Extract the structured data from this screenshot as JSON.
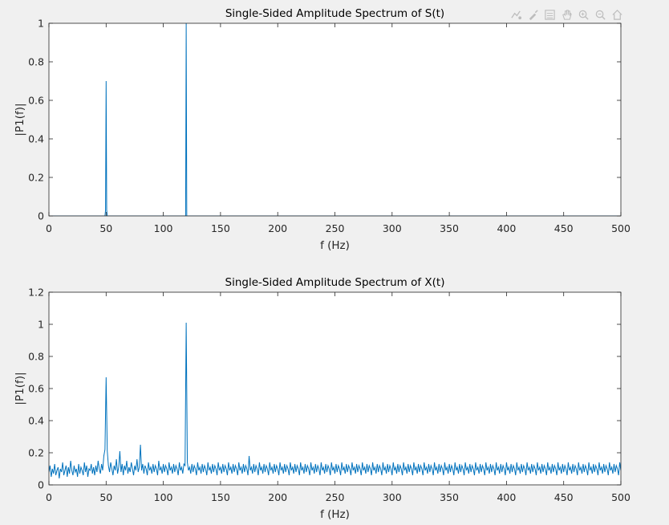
{
  "figure": {
    "background": "#f0f0f0",
    "axes_background": "#ffffff",
    "line_color": "#0072bd"
  },
  "toolbar": {
    "icons": [
      "data-tips-icon",
      "brush-icon",
      "legend-icon",
      "pan-icon",
      "zoom-in-icon",
      "zoom-out-icon",
      "home-icon"
    ]
  },
  "chart_data": [
    {
      "type": "line",
      "title": "Single-Sided Amplitude Spectrum of S(t)",
      "xlabel": "f (Hz)",
      "ylabel": "|P1(f)|",
      "xlim": [
        0,
        500
      ],
      "ylim": [
        0,
        1
      ],
      "xticks": [
        0,
        50,
        100,
        150,
        200,
        250,
        300,
        350,
        400,
        450,
        500
      ],
      "yticks": [
        0,
        0.2,
        0.4,
        0.6,
        0.8,
        1
      ],
      "xtick_labels": [
        "0",
        "50",
        "100",
        "150",
        "200",
        "250",
        "300",
        "350",
        "400",
        "450",
        "500"
      ],
      "ytick_labels": [
        "0",
        "0.2",
        "0.4",
        "0.6",
        "0.8",
        "1"
      ],
      "grid": false,
      "series": [
        {
          "x": [
            0,
            49,
            49.5,
            50,
            50.5,
            51,
            119,
            119.5,
            120,
            120.5,
            121,
            500
          ],
          "y": [
            0,
            0,
            0.03,
            0.7,
            0.03,
            0,
            0,
            0.0,
            1.0,
            0.0,
            0,
            0
          ]
        }
      ]
    },
    {
      "type": "line",
      "title": "Single-Sided Amplitude Spectrum of X(t)",
      "xlabel": "f (Hz)",
      "ylabel": "|P1(f)|",
      "xlim": [
        0,
        500
      ],
      "ylim": [
        0,
        1.2
      ],
      "xticks": [
        0,
        50,
        100,
        150,
        200,
        250,
        300,
        350,
        400,
        450,
        500
      ],
      "yticks": [
        0,
        0.2,
        0.4,
        0.6,
        0.8,
        1,
        1.2
      ],
      "xtick_labels": [
        "0",
        "50",
        "100",
        "150",
        "200",
        "250",
        "300",
        "350",
        "400",
        "450",
        "500"
      ],
      "ytick_labels": [
        "0",
        "0.2",
        "0.4",
        "0.6",
        "0.8",
        "1",
        "1.2"
      ],
      "grid": false,
      "series": [
        {
          "x_start": 0,
          "x_step": 1,
          "y": [
            0.08,
            0.12,
            0.05,
            0.1,
            0.07,
            0.13,
            0.06,
            0.09,
            0.11,
            0.04,
            0.1,
            0.08,
            0.14,
            0.06,
            0.09,
            0.12,
            0.05,
            0.11,
            0.07,
            0.15,
            0.09,
            0.06,
            0.12,
            0.08,
            0.1,
            0.05,
            0.13,
            0.07,
            0.11,
            0.09,
            0.06,
            0.14,
            0.08,
            0.12,
            0.05,
            0.1,
            0.09,
            0.13,
            0.07,
            0.11,
            0.06,
            0.12,
            0.08,
            0.15,
            0.1,
            0.07,
            0.13,
            0.09,
            0.18,
            0.22,
            0.67,
            0.21,
            0.12,
            0.08,
            0.14,
            0.1,
            0.06,
            0.12,
            0.09,
            0.16,
            0.07,
            0.11,
            0.21,
            0.08,
            0.13,
            0.06,
            0.12,
            0.09,
            0.15,
            0.07,
            0.11,
            0.08,
            0.14,
            0.1,
            0.06,
            0.12,
            0.09,
            0.16,
            0.08,
            0.11,
            0.25,
            0.09,
            0.13,
            0.07,
            0.12,
            0.1,
            0.06,
            0.14,
            0.09,
            0.11,
            0.07,
            0.13,
            0.08,
            0.12,
            0.1,
            0.06,
            0.15,
            0.09,
            0.11,
            0.07,
            0.13,
            0.08,
            0.12,
            0.1,
            0.06,
            0.14,
            0.09,
            0.11,
            0.07,
            0.13,
            0.08,
            0.12,
            0.1,
            0.06,
            0.14,
            0.09,
            0.11,
            0.07,
            0.13,
            0.12,
            1.01,
            0.14,
            0.09,
            0.11,
            0.07,
            0.13,
            0.08,
            0.12,
            0.1,
            0.06,
            0.14,
            0.09,
            0.11,
            0.07,
            0.13,
            0.08,
            0.12,
            0.1,
            0.06,
            0.14,
            0.09,
            0.11,
            0.07,
            0.13,
            0.08,
            0.12,
            0.1,
            0.06,
            0.14,
            0.09,
            0.11,
            0.07,
            0.13,
            0.08,
            0.12,
            0.1,
            0.06,
            0.14,
            0.09,
            0.11,
            0.07,
            0.13,
            0.08,
            0.12,
            0.1,
            0.06,
            0.14,
            0.09,
            0.11,
            0.07,
            0.13,
            0.08,
            0.12,
            0.1,
            0.06,
            0.18,
            0.09,
            0.11,
            0.07,
            0.13,
            0.08,
            0.12,
            0.1,
            0.06,
            0.14,
            0.09,
            0.11,
            0.07,
            0.13,
            0.08,
            0.12,
            0.1,
            0.06,
            0.14,
            0.09,
            0.11,
            0.07,
            0.13,
            0.08,
            0.12,
            0.1,
            0.06,
            0.14,
            0.09,
            0.11,
            0.07,
            0.13,
            0.08,
            0.12,
            0.1,
            0.06,
            0.14,
            0.09,
            0.11,
            0.07,
            0.13,
            0.08,
            0.12,
            0.1,
            0.06,
            0.14,
            0.09,
            0.11,
            0.07,
            0.13,
            0.08,
            0.12,
            0.1,
            0.06,
            0.14,
            0.09,
            0.11,
            0.07,
            0.13,
            0.08,
            0.12,
            0.1,
            0.06,
            0.14,
            0.09,
            0.11,
            0.07,
            0.13,
            0.08,
            0.12,
            0.1,
            0.06,
            0.14,
            0.09,
            0.11,
            0.07,
            0.13,
            0.08,
            0.12,
            0.1,
            0.06,
            0.14,
            0.09,
            0.11,
            0.07,
            0.13,
            0.08,
            0.12,
            0.1,
            0.06,
            0.14,
            0.09,
            0.11,
            0.07,
            0.13,
            0.08,
            0.12,
            0.1,
            0.06,
            0.14,
            0.09,
            0.11,
            0.07,
            0.13,
            0.08,
            0.12,
            0.1,
            0.06,
            0.14,
            0.09,
            0.11,
            0.07,
            0.13,
            0.08,
            0.12,
            0.1,
            0.06,
            0.14,
            0.09,
            0.11,
            0.07,
            0.13,
            0.08,
            0.12,
            0.1,
            0.06,
            0.14,
            0.09,
            0.11,
            0.07,
            0.13,
            0.08,
            0.12,
            0.1,
            0.06,
            0.14,
            0.09,
            0.11,
            0.07,
            0.13,
            0.08,
            0.12,
            0.1,
            0.06,
            0.14,
            0.09,
            0.11,
            0.07,
            0.13,
            0.08,
            0.12,
            0.1,
            0.06,
            0.14,
            0.09,
            0.11,
            0.07,
            0.13,
            0.08,
            0.12,
            0.1,
            0.06,
            0.14,
            0.09,
            0.11,
            0.07,
            0.13,
            0.08,
            0.12,
            0.1,
            0.06,
            0.14,
            0.09,
            0.11,
            0.07,
            0.13,
            0.08,
            0.12,
            0.1,
            0.06,
            0.14,
            0.09,
            0.11,
            0.07,
            0.13,
            0.08,
            0.12,
            0.1,
            0.06,
            0.14,
            0.09,
            0.11,
            0.07,
            0.13,
            0.08,
            0.12,
            0.1,
            0.06,
            0.14,
            0.09,
            0.11,
            0.07,
            0.13,
            0.08,
            0.12,
            0.1,
            0.06,
            0.14,
            0.09,
            0.11,
            0.07,
            0.13,
            0.08,
            0.12,
            0.1,
            0.06,
            0.14,
            0.09,
            0.11,
            0.07,
            0.13,
            0.08,
            0.12,
            0.1,
            0.06,
            0.14,
            0.09,
            0.11,
            0.07,
            0.13,
            0.08,
            0.12,
            0.1,
            0.06,
            0.14,
            0.09,
            0.11,
            0.07,
            0.13,
            0.08,
            0.12,
            0.1,
            0.06,
            0.14,
            0.09,
            0.11,
            0.07,
            0.13,
            0.08,
            0.12,
            0.1,
            0.06,
            0.14,
            0.09,
            0.11,
            0.07,
            0.13,
            0.08,
            0.12,
            0.1,
            0.06,
            0.14,
            0.09,
            0.11,
            0.07,
            0.13,
            0.08,
            0.12,
            0.1,
            0.06,
            0.14,
            0.09,
            0.11,
            0.07,
            0.13,
            0.08,
            0.12,
            0.1,
            0.06,
            0.14,
            0.09,
            0.11,
            0.07,
            0.13,
            0.08,
            0.12,
            0.1,
            0.06,
            0.14,
            0.09,
            0.11,
            0.07,
            0.13,
            0.08,
            0.12,
            0.1,
            0.06,
            0.14,
            0.09,
            0.11,
            0.07,
            0.13,
            0.08,
            0.12,
            0.1,
            0.06,
            0.14,
            0.09,
            0.11,
            0.07,
            0.13,
            0.08,
            0.12,
            0.1,
            0.06,
            0.14,
            0.09,
            0.11,
            0.07,
            0.13,
            0.08,
            0.12,
            0.1,
            0.06,
            0.14,
            0.09,
            0.11,
            0.07
          ]
        }
      ]
    }
  ]
}
